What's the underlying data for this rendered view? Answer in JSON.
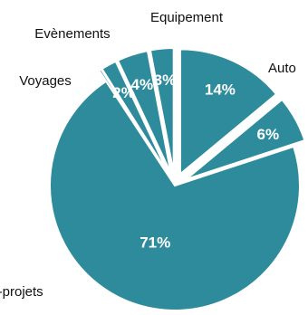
{
  "chart_data": {
    "type": "pie",
    "title": "",
    "slices": [
      {
        "category": "Auto",
        "value": 14,
        "value_label": "14%",
        "exploded": true
      },
      {
        "category": "",
        "value": 6,
        "value_label": "6%",
        "exploded": true
      },
      {
        "category": "Multi-projets",
        "value": 71,
        "value_label": "71%",
        "exploded": false
      },
      {
        "category": "Voyages",
        "value": 0.3,
        "value_label": "",
        "exploded": true
      },
      {
        "category": "Voyages",
        "value": 2,
        "value_label": "2%",
        "exploded": true
      },
      {
        "category": "Evènements",
        "value": 4,
        "value_label": "4%",
        "exploded": true
      },
      {
        "category": "Equipement",
        "value": 3,
        "value_label": "3%",
        "exploded": true
      }
    ],
    "category_labels": [
      "Equipement",
      "Evènements",
      "Voyages",
      "Auto",
      "Multi-projets"
    ],
    "colors": {
      "slice": "#2e8b9b",
      "edge": "#ffffff",
      "value_text": "#ffffff",
      "category_text": "#111111"
    },
    "legend": "none",
    "start_angle_deg": 0,
    "direction": "clockwise"
  }
}
